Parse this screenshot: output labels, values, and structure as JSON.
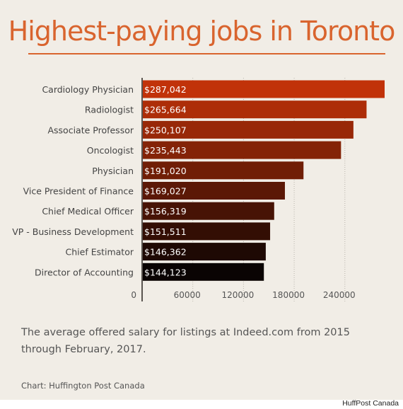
{
  "title": "Highest-paying jobs in Toronto",
  "caption": "The average offered salary for listings at Indeed.com from 2015 through February, 2017.",
  "credit": "Chart: Huffington Post Canada",
  "source_label": "HuffPost Canada",
  "colors": {
    "title": "#d9642e",
    "bar_gradient": [
      "#c13209",
      "#0a0403"
    ]
  },
  "chart_data": {
    "type": "bar",
    "orientation": "horizontal",
    "categories": [
      "Cardiology Physician",
      "Radiologist",
      "Associate Professor",
      "Oncologist",
      "Physician",
      "Vice President of Finance",
      "Chief Medical Officer",
      "VP - Business Development",
      "Chief Estimator",
      "Director of Accounting"
    ],
    "values": [
      287042,
      265664,
      250107,
      235443,
      191020,
      169027,
      156319,
      151511,
      146362,
      144123
    ],
    "value_labels": [
      "$287,042",
      "$265,664",
      "$250,107",
      "$235,443",
      "$191,020",
      "$169,027",
      "$156,319",
      "$151,511",
      "$146,362",
      "$144,123"
    ],
    "x_ticks": [
      0,
      60000,
      120000,
      180000,
      240000
    ],
    "x_tick_labels": [
      "0",
      "60000",
      "120000",
      "180000",
      "240000"
    ],
    "xlim": [
      0,
      287042
    ],
    "grid": "vertical dotted"
  }
}
